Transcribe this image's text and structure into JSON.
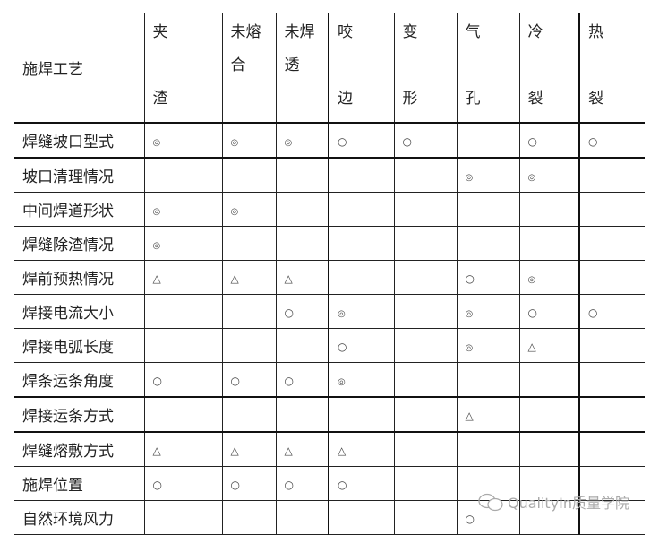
{
  "table": {
    "corner_label": "施焊工艺",
    "columns": [
      {
        "lines": [
          "夹",
          "",
          "渣"
        ]
      },
      {
        "lines": [
          "未熔",
          "合",
          ""
        ]
      },
      {
        "lines": [
          "未焊",
          "透",
          ""
        ]
      },
      {
        "lines": [
          "咬",
          "",
          "边"
        ]
      },
      {
        "lines": [
          "变",
          "",
          "形"
        ]
      },
      {
        "lines": [
          "气",
          "",
          "孔"
        ]
      },
      {
        "lines": [
          "冷",
          "",
          "裂"
        ]
      },
      {
        "lines": [
          "热",
          "",
          "裂"
        ]
      }
    ],
    "rows": [
      {
        "label": "焊缝坡口型式",
        "cells": [
          "◎",
          "◎",
          "◎",
          "○",
          "○",
          "",
          "○",
          "○"
        ]
      },
      {
        "label": "坡口清理情况",
        "cells": [
          "",
          "",
          "",
          "",
          "",
          "◎",
          "◎",
          ""
        ]
      },
      {
        "label": "中间焊道形状",
        "cells": [
          "◎",
          "◎",
          "",
          "",
          "",
          "",
          "",
          ""
        ]
      },
      {
        "label": "焊缝除渣情况",
        "cells": [
          "◎",
          "",
          "",
          "",
          "",
          "",
          "",
          ""
        ]
      },
      {
        "label": "焊前预热情况",
        "cells": [
          "△",
          "△",
          "△",
          "",
          "",
          "○",
          "◎",
          ""
        ]
      },
      {
        "label": "焊接电流大小",
        "cells": [
          "",
          "",
          "○",
          "◎",
          "",
          "◎",
          "○",
          "○"
        ]
      },
      {
        "label": "焊接电弧长度",
        "cells": [
          "",
          "",
          "",
          "○",
          "",
          "◎",
          "△",
          ""
        ]
      },
      {
        "label": "焊条运条角度",
        "cells": [
          "○",
          "○",
          "○",
          "◎",
          "",
          "",
          "",
          ""
        ]
      },
      {
        "label": "焊接运条方式",
        "cells": [
          "",
          "",
          "",
          "",
          "",
          "△",
          "",
          ""
        ]
      },
      {
        "label": "焊缝熔敷方式",
        "cells": [
          "△",
          "△",
          "△",
          "△",
          "",
          "",
          "",
          ""
        ]
      },
      {
        "label": "施焊位置",
        "cells": [
          "○",
          "○",
          "○",
          "○",
          "",
          "",
          "",
          ""
        ]
      },
      {
        "label": "自然环境风力",
        "cells": [
          "",
          "",
          "",
          "",
          "",
          "○",
          "",
          ""
        ]
      }
    ]
  },
  "watermark": {
    "text": "QualityIn质量学院",
    "icon": "wechat-icon"
  }
}
